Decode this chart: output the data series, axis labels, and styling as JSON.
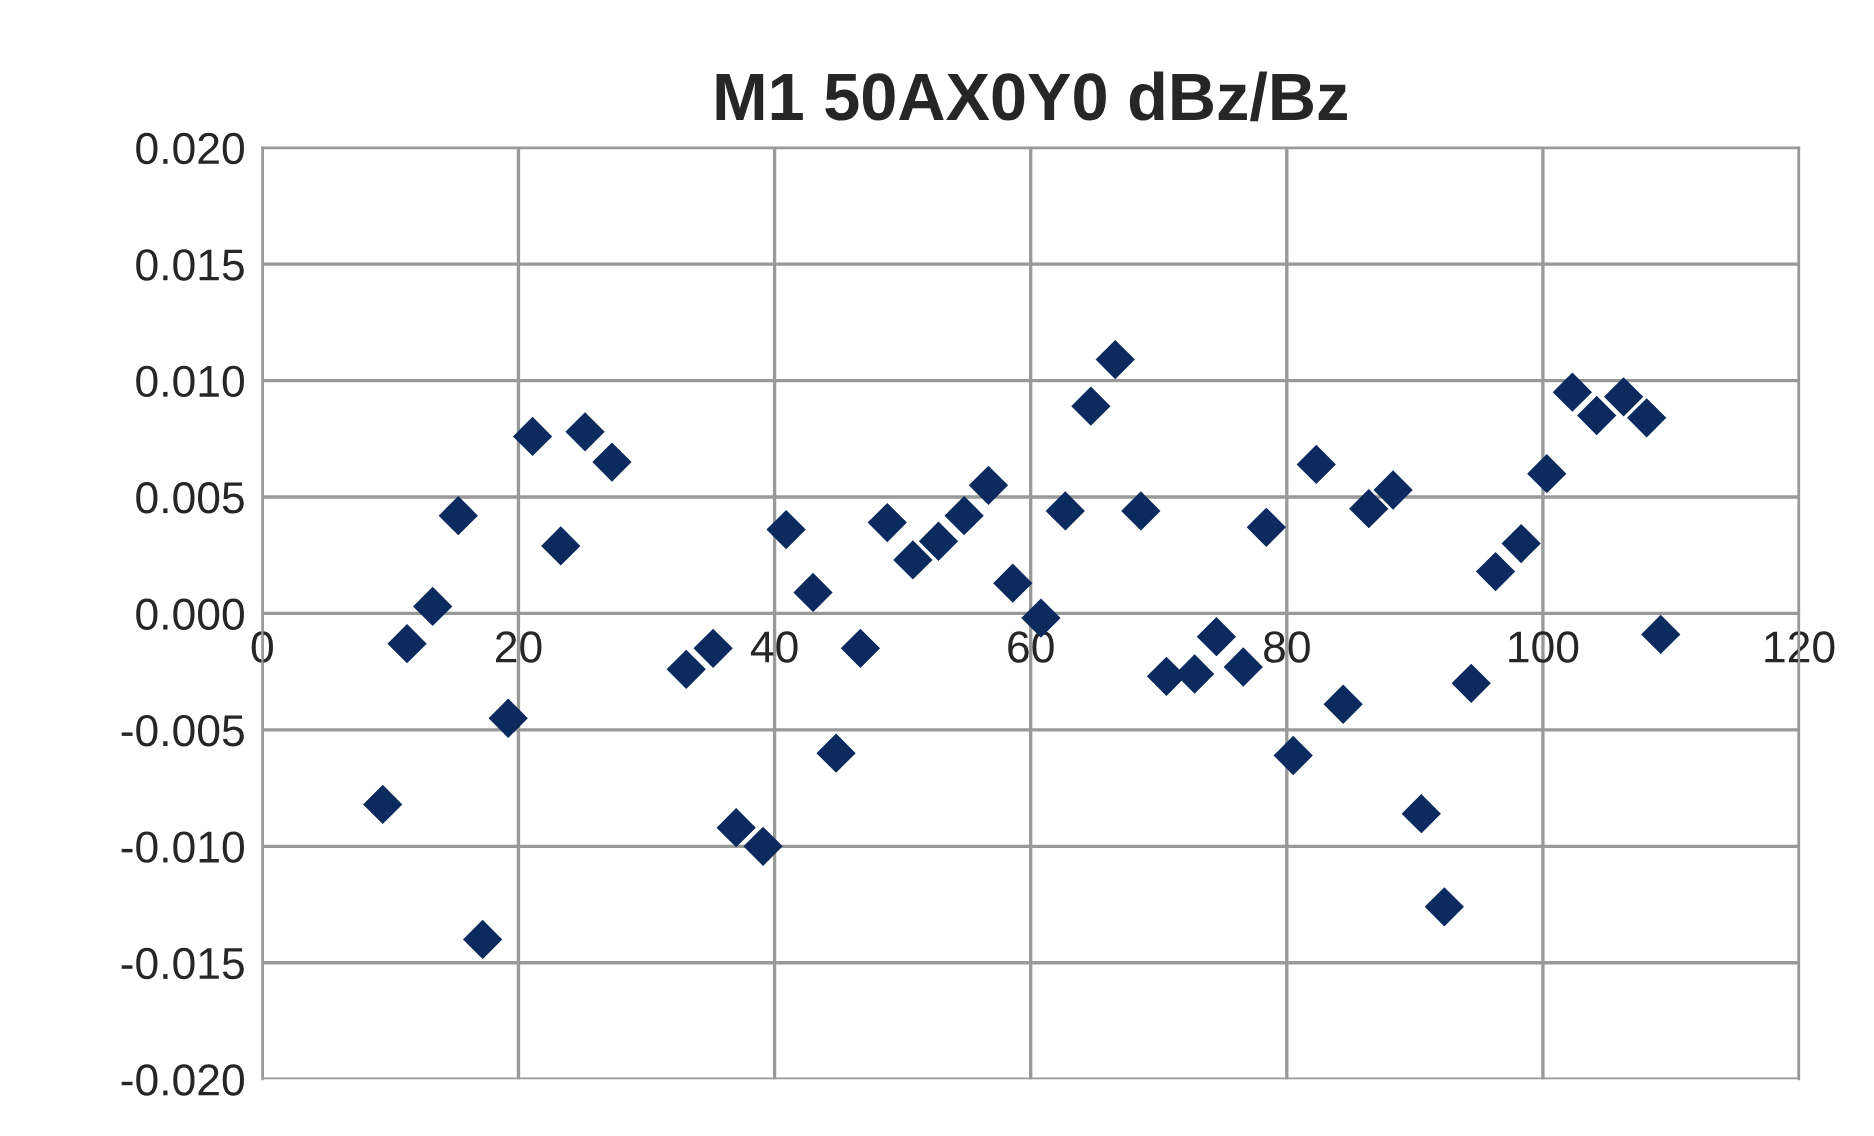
{
  "chart_data": {
    "type": "scatter",
    "title": "M1 50AX0Y0 dBz/Bz",
    "x": [
      9.4,
      11.3,
      13.3,
      15.3,
      17.2,
      19.2,
      21.1,
      23.3,
      25.2,
      27.3,
      33.1,
      35.2,
      37.0,
      39.1,
      40.9,
      43.0,
      44.8,
      46.7,
      48.8,
      50.8,
      52.8,
      54.8,
      56.7,
      58.6,
      60.8,
      62.7,
      64.7,
      66.6,
      68.6,
      70.6,
      72.8,
      74.5,
      76.6,
      78.4,
      80.5,
      82.3,
      84.4,
      86.4,
      88.3,
      90.5,
      92.3,
      94.4,
      96.3,
      98.3,
      100.3,
      102.3,
      104.2,
      106.3,
      108.1,
      109.2
    ],
    "series": [
      {
        "color": "#0b2a5e",
        "values": [
          -0.0082,
          -0.0013,
          0.0003,
          0.0042,
          -0.014,
          -0.0045,
          0.0076,
          0.0029,
          0.0078,
          0.0065,
          -0.0024,
          -0.0015,
          -0.0092,
          -0.01,
          0.0036,
          0.0009,
          -0.006,
          -0.0015,
          0.0039,
          0.0023,
          0.0031,
          0.0042,
          0.0055,
          0.0013,
          -0.0002,
          0.0044,
          0.0089,
          0.0109,
          0.0044,
          -0.0027,
          -0.0026,
          -0.001,
          -0.0023,
          0.0037,
          -0.0061,
          0.0064,
          -0.0039,
          0.0045,
          0.0053,
          -0.0086,
          -0.0126,
          -0.003,
          0.0018,
          0.003,
          0.006,
          0.0095,
          0.0085,
          0.0093,
          0.0084,
          -0.0009
        ]
      }
    ],
    "xlim": [
      0,
      120
    ],
    "xticks": [
      0,
      20,
      40,
      60,
      80,
      100,
      120
    ],
    "ylim": [
      -0.02,
      0.02
    ],
    "yticks": [
      {
        "value": -0.02,
        "label": "-0.020"
      },
      {
        "value": -0.015,
        "label": "-0.015"
      },
      {
        "value": -0.01,
        "label": "-0.010"
      },
      {
        "value": -0.005,
        "label": "-0.005"
      },
      {
        "value": 0,
        "label": "0.000"
      },
      {
        "value": 0.005,
        "label": "0.005"
      },
      {
        "value": 0.01,
        "label": "0.010"
      },
      {
        "value": 0.015,
        "label": "0.015"
      },
      {
        "value": 0.02,
        "label": "0.020"
      }
    ],
    "grid": true,
    "marker": "diamond"
  }
}
